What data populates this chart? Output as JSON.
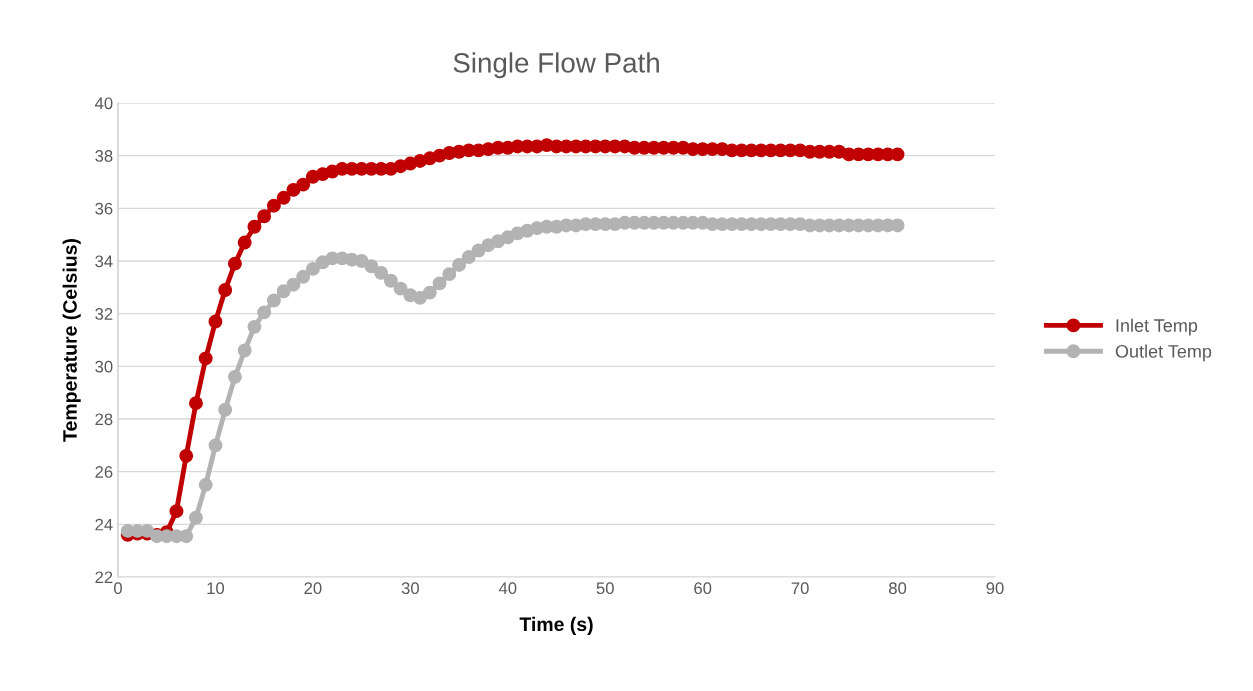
{
  "chart_data": {
    "type": "line",
    "title": "Single Flow Path",
    "xlabel": "Time (s)",
    "ylabel": "Temperature (Celsius)",
    "x": [
      1,
      2,
      3,
      4,
      5,
      6,
      7,
      8,
      9,
      10,
      11,
      12,
      13,
      14,
      15,
      16,
      17,
      18,
      19,
      20,
      21,
      22,
      23,
      24,
      25,
      26,
      27,
      28,
      29,
      30,
      31,
      32,
      33,
      34,
      35,
      36,
      37,
      38,
      39,
      40,
      41,
      42,
      43,
      44,
      45,
      46,
      47,
      48,
      49,
      50,
      51,
      52,
      53,
      54,
      55,
      56,
      57,
      58,
      59,
      60,
      61,
      62,
      63,
      64,
      65,
      66,
      67,
      68,
      69,
      70,
      71,
      72,
      73,
      74,
      75,
      76,
      77,
      78,
      79,
      80
    ],
    "series": [
      {
        "name": "Inlet Temp",
        "color": "#c00000",
        "values": [
          23.6,
          23.65,
          23.65,
          23.6,
          23.7,
          24.5,
          26.6,
          28.6,
          30.3,
          31.7,
          32.9,
          33.9,
          34.7,
          35.3,
          35.7,
          36.1,
          36.4,
          36.7,
          36.9,
          37.2,
          37.3,
          37.4,
          37.5,
          37.5,
          37.5,
          37.5,
          37.5,
          37.5,
          37.6,
          37.7,
          37.8,
          37.9,
          38.0,
          38.1,
          38.15,
          38.2,
          38.2,
          38.25,
          38.3,
          38.3,
          38.35,
          38.35,
          38.35,
          38.4,
          38.35,
          38.35,
          38.35,
          38.35,
          38.35,
          38.35,
          38.35,
          38.35,
          38.3,
          38.3,
          38.3,
          38.3,
          38.3,
          38.3,
          38.25,
          38.25,
          38.25,
          38.25,
          38.2,
          38.2,
          38.2,
          38.2,
          38.2,
          38.2,
          38.2,
          38.2,
          38.15,
          38.15,
          38.15,
          38.15,
          38.05,
          38.05,
          38.05,
          38.05,
          38.05,
          38.05
        ]
      },
      {
        "name": "Outlet Temp",
        "color": "#b3b3b3",
        "values": [
          23.75,
          23.75,
          23.75,
          23.55,
          23.55,
          23.55,
          23.55,
          24.25,
          25.5,
          27.0,
          28.35,
          29.6,
          30.6,
          31.5,
          32.05,
          32.5,
          32.85,
          33.1,
          33.4,
          33.7,
          33.95,
          34.1,
          34.1,
          34.05,
          34.0,
          33.8,
          33.55,
          33.25,
          32.95,
          32.7,
          32.6,
          32.8,
          33.15,
          33.5,
          33.85,
          34.15,
          34.4,
          34.6,
          34.75,
          34.9,
          35.05,
          35.15,
          35.25,
          35.3,
          35.3,
          35.35,
          35.35,
          35.4,
          35.4,
          35.4,
          35.4,
          35.45,
          35.45,
          35.45,
          35.45,
          35.45,
          35.45,
          35.45,
          35.45,
          35.45,
          35.4,
          35.4,
          35.4,
          35.4,
          35.4,
          35.4,
          35.4,
          35.4,
          35.4,
          35.4,
          35.35,
          35.35,
          35.35,
          35.35,
          35.35,
          35.35,
          35.35,
          35.35,
          35.35,
          35.35
        ]
      }
    ],
    "xlim": [
      0,
      90
    ],
    "xticks": [
      0,
      10,
      20,
      30,
      40,
      50,
      60,
      70,
      80,
      90
    ],
    "ylim": [
      22,
      40
    ],
    "yticks": [
      22,
      24,
      26,
      28,
      30,
      32,
      34,
      36,
      38,
      40
    ],
    "grid": "y",
    "legend": "right",
    "marker": "circle",
    "line_style": "solid"
  }
}
